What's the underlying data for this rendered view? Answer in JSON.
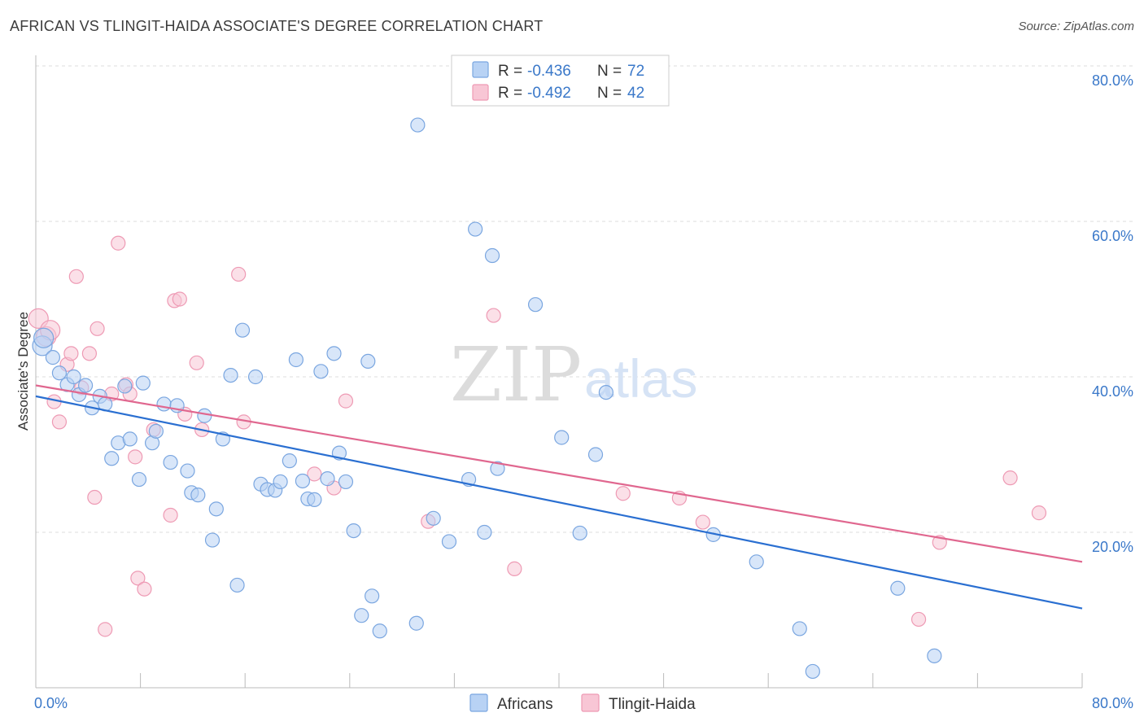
{
  "title": "AFRICAN VS TLINGIT-HAIDA ASSOCIATE'S DEGREE CORRELATION CHART",
  "source": "Source: ZipAtlas.com",
  "colors": {
    "africans_fill": "#b8d2f4",
    "africans_stroke": "#7aa6e0",
    "africans_line": "#2a6fd1",
    "tlingit_fill": "#f8c6d5",
    "tlingit_stroke": "#ee9ab4",
    "tlingit_line": "#e0678f",
    "tick_text": "#3a78c9",
    "grid": "#dddddd"
  },
  "legend": {
    "rows": [
      {
        "r_label": "R =",
        "r_value": "-0.436",
        "n_label": "N =",
        "n_value": "72"
      },
      {
        "r_label": "R =",
        "r_value": "-0.492",
        "n_label": "N =",
        "n_value": "42"
      }
    ]
  },
  "watermark": {
    "zip": "ZIP",
    "atlas": "atlas"
  },
  "chart_data": {
    "type": "scatter",
    "title": "AFRICAN VS TLINGIT-HAIDA ASSOCIATE'S DEGREE CORRELATION CHART",
    "xlabel": "",
    "ylabel": "Associate's Degree",
    "xlim": [
      0,
      80
    ],
    "ylim": [
      0,
      80
    ],
    "x_ticks": [
      "0.0%",
      "80.0%"
    ],
    "y_ticks": [
      "20.0%",
      "40.0%",
      "60.0%",
      "80.0%"
    ],
    "grid": true,
    "legend_position": "top-center",
    "series": [
      {
        "name": "Africans",
        "r": -0.436,
        "n": 72,
        "trend": {
          "x": [
            0,
            80
          ],
          "y": [
            37.5,
            10.2
          ]
        },
        "points": [
          [
            0.5,
            44.0
          ],
          [
            0.6,
            45.0
          ],
          [
            1.3,
            42.5
          ],
          [
            1.8,
            40.5
          ],
          [
            2.4,
            39.0
          ],
          [
            2.9,
            40.0
          ],
          [
            3.3,
            37.7
          ],
          [
            3.8,
            38.9
          ],
          [
            4.3,
            36.0
          ],
          [
            4.9,
            37.5
          ],
          [
            5.3,
            36.5
          ],
          [
            5.8,
            29.5
          ],
          [
            6.3,
            31.5
          ],
          [
            6.8,
            38.8
          ],
          [
            7.2,
            32.0
          ],
          [
            7.9,
            26.8
          ],
          [
            8.2,
            39.2
          ],
          [
            8.9,
            31.5
          ],
          [
            9.2,
            33.0
          ],
          [
            9.8,
            36.5
          ],
          [
            10.3,
            29.0
          ],
          [
            10.8,
            36.3
          ],
          [
            11.6,
            27.9
          ],
          [
            11.9,
            25.1
          ],
          [
            12.4,
            24.8
          ],
          [
            12.9,
            35.0
          ],
          [
            13.5,
            19.0
          ],
          [
            13.8,
            23.0
          ],
          [
            14.3,
            32.0
          ],
          [
            14.9,
            40.2
          ],
          [
            15.4,
            13.2
          ],
          [
            15.8,
            46.0
          ],
          [
            16.8,
            40.0
          ],
          [
            17.2,
            26.2
          ],
          [
            17.7,
            25.5
          ],
          [
            18.3,
            25.4
          ],
          [
            18.7,
            26.5
          ],
          [
            19.4,
            29.2
          ],
          [
            19.9,
            42.2
          ],
          [
            20.4,
            26.6
          ],
          [
            20.8,
            24.3
          ],
          [
            21.3,
            24.2
          ],
          [
            21.8,
            40.7
          ],
          [
            22.3,
            26.9
          ],
          [
            22.8,
            43.0
          ],
          [
            23.2,
            30.2
          ],
          [
            23.7,
            26.5
          ],
          [
            24.3,
            20.2
          ],
          [
            24.9,
            9.3
          ],
          [
            25.4,
            42.0
          ],
          [
            25.7,
            11.8
          ],
          [
            26.3,
            7.3
          ],
          [
            29.1,
            8.3
          ],
          [
            29.2,
            72.4
          ],
          [
            30.4,
            21.8
          ],
          [
            31.6,
            18.8
          ],
          [
            33.1,
            26.8
          ],
          [
            33.6,
            59.0
          ],
          [
            34.3,
            20.0
          ],
          [
            34.9,
            55.6
          ],
          [
            35.3,
            28.2
          ],
          [
            38.2,
            49.3
          ],
          [
            40.2,
            32.2
          ],
          [
            41.6,
            19.9
          ],
          [
            42.8,
            30.0
          ],
          [
            43.6,
            38.0
          ],
          [
            51.8,
            19.7
          ],
          [
            55.1,
            16.2
          ],
          [
            58.4,
            7.6
          ],
          [
            59.4,
            2.1
          ],
          [
            65.9,
            12.8
          ],
          [
            68.7,
            4.1
          ]
        ]
      },
      {
        "name": "Tlingit-Haida",
        "r": -0.492,
        "n": 42,
        "trend": {
          "x": [
            0,
            80
          ],
          "y": [
            38.9,
            16.2
          ]
        },
        "points": [
          [
            0.2,
            47.5
          ],
          [
            0.8,
            45.2
          ],
          [
            1.1,
            46.0
          ],
          [
            1.4,
            36.8
          ],
          [
            1.8,
            34.2
          ],
          [
            2.4,
            41.6
          ],
          [
            2.7,
            43.0
          ],
          [
            3.1,
            52.9
          ],
          [
            3.5,
            38.6
          ],
          [
            4.1,
            43.0
          ],
          [
            4.5,
            24.5
          ],
          [
            4.7,
            46.2
          ],
          [
            5.3,
            7.5
          ],
          [
            5.8,
            37.8
          ],
          [
            6.3,
            57.2
          ],
          [
            6.9,
            39.0
          ],
          [
            7.2,
            37.8
          ],
          [
            7.6,
            29.7
          ],
          [
            7.8,
            14.1
          ],
          [
            8.3,
            12.7
          ],
          [
            9.0,
            33.2
          ],
          [
            10.3,
            22.2
          ],
          [
            10.6,
            49.8
          ],
          [
            11.0,
            50.0
          ],
          [
            11.4,
            35.2
          ],
          [
            12.3,
            41.8
          ],
          [
            12.7,
            33.2
          ],
          [
            15.5,
            53.2
          ],
          [
            15.9,
            34.2
          ],
          [
            21.3,
            27.5
          ],
          [
            22.8,
            25.7
          ],
          [
            23.7,
            36.9
          ],
          [
            30.0,
            21.4
          ],
          [
            35.0,
            47.9
          ],
          [
            36.6,
            15.3
          ],
          [
            44.9,
            25.0
          ],
          [
            49.2,
            24.4
          ],
          [
            51.0,
            21.3
          ],
          [
            67.5,
            8.8
          ],
          [
            69.1,
            18.7
          ],
          [
            74.5,
            27.0
          ],
          [
            76.7,
            22.5
          ]
        ]
      }
    ]
  }
}
